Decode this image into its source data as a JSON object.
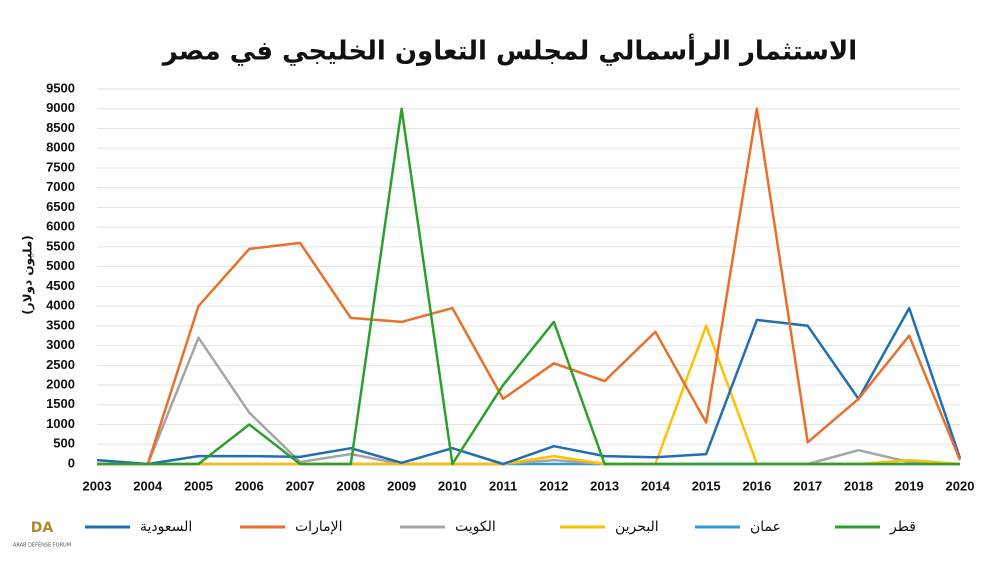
{
  "chart_data": {
    "type": "line",
    "title": "الاستثمار الرأسمالي لمجلس التعاون الخليجي في مصر",
    "y_label": "(مليون دولار)",
    "categories": [
      "2003",
      "2004",
      "2005",
      "2006",
      "2007",
      "2008",
      "2009",
      "2010",
      "2011",
      "2012",
      "2013",
      "2014",
      "2015",
      "2016",
      "2017",
      "2018",
      "2019",
      "2020"
    ],
    "series": [
      {
        "name": "السعودية",
        "color": "#1f6fb2",
        "values": [
          100,
          0,
          200,
          200,
          180,
          400,
          30,
          400,
          0,
          450,
          200,
          170,
          250,
          3650,
          3500,
          1650,
          3950,
          150
        ]
      },
      {
        "name": "الإمارات",
        "color": "#e8702a",
        "values": [
          0,
          0,
          4000,
          5450,
          5600,
          3700,
          3600,
          3950,
          1650,
          2550,
          2100,
          3350,
          1050,
          9000,
          550,
          1650,
          3250,
          100
        ]
      },
      {
        "name": "الكويت",
        "color": "#a5a5a5",
        "values": [
          0,
          0,
          3200,
          1300,
          50,
          250,
          0,
          0,
          0,
          100,
          0,
          0,
          0,
          0,
          0,
          350,
          50,
          0
        ]
      },
      {
        "name": "البحرين",
        "color": "#ffc000",
        "values": [
          0,
          0,
          0,
          0,
          0,
          0,
          0,
          0,
          0,
          200,
          0,
          0,
          3500,
          0,
          0,
          0,
          100,
          0
        ]
      },
      {
        "name": "عمان",
        "color": "#2e9bd6",
        "values": [
          0,
          0,
          0,
          0,
          0,
          0,
          0,
          0,
          0,
          0,
          0,
          0,
          0,
          0,
          0,
          0,
          0,
          0
        ]
      },
      {
        "name": "قطر",
        "color": "#2ca02c",
        "values": [
          0,
          0,
          0,
          1000,
          0,
          0,
          9000,
          0,
          2000,
          3600,
          0,
          0,
          0,
          0,
          0,
          0,
          0,
          0
        ]
      }
    ],
    "ylim": [
      0,
      9500
    ],
    "yticks": [
      0,
      500,
      1000,
      1500,
      2000,
      2500,
      3000,
      3500,
      4000,
      4500,
      5000,
      5500,
      6000,
      6500,
      7000,
      7500,
      8000,
      8500,
      9000,
      9500
    ],
    "grid": true,
    "legend": "bottom",
    "watermark": [
      "DA",
      "ARAB DEFENSE FORUM"
    ]
  }
}
